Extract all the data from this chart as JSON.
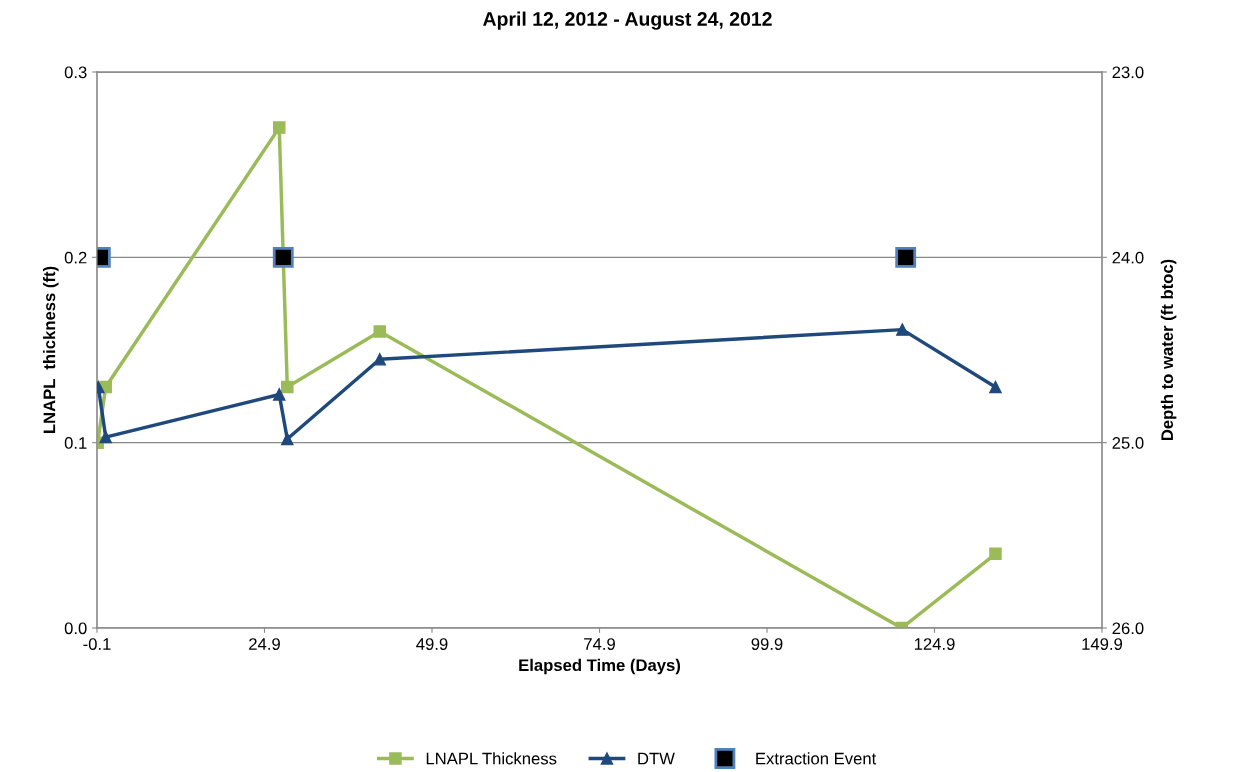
{
  "chart_data": {
    "type": "line",
    "title": "April 12, 2012 - August 24, 2012",
    "xlabel": "Elapsed Time (Days)",
    "ylabel": "LNAPL  thickness (ft)",
    "y2label": "Depth to water (ft btoc)",
    "xlim": [
      -0.1,
      149.9
    ],
    "xticks": [
      -0.1,
      24.9,
      49.9,
      74.9,
      99.9,
      124.9,
      149.9
    ],
    "ylim": [
      0,
      0.3
    ],
    "yticks": [
      {
        "value": 0,
        "label": "0.0"
      },
      {
        "value": 0.1,
        "label": "0.1"
      },
      {
        "value": 0.2,
        "label": "0.2"
      },
      {
        "value": 0.3,
        "label": "0.3"
      }
    ],
    "y2lim": [
      26,
      23
    ],
    "y2ticks": [
      {
        "value": 23,
        "label": "23.0"
      },
      {
        "value": 24,
        "label": "24.0"
      },
      {
        "value": 25,
        "label": "25.0"
      },
      {
        "value": 26,
        "label": "26.0"
      }
    ],
    "grid": "y",
    "legend": "bottom",
    "series": [
      {
        "name": "LNAPL Thickness",
        "color": "#9bbb59",
        "marker": "square",
        "x": [
          0,
          1.2,
          27.1,
          28.3,
          42.1,
          120.0,
          134.0
        ],
        "values": [
          0.1,
          0.13,
          0.27,
          0.13,
          0.16,
          0.0,
          0.04
        ]
      },
      {
        "name": "DTW",
        "color": "#1f497d",
        "marker": "triangle",
        "axis": "y2",
        "x": [
          0.1,
          1.2,
          27.1,
          28.3,
          42.1,
          120.1,
          134.0
        ],
        "values": [
          24.7,
          24.97,
          24.74,
          24.98,
          24.55,
          24.39,
          24.7
        ]
      },
      {
        "name": "Extraction Event",
        "type": "scatter",
        "color": "#000000",
        "marker": "square",
        "x": [
          0.4,
          27.7,
          120.6
        ],
        "values": [
          0.2,
          0.2,
          0.2
        ]
      }
    ]
  }
}
